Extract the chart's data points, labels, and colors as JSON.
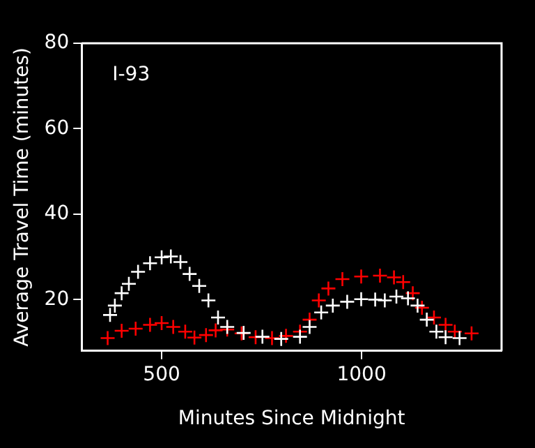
{
  "chart_data": {
    "type": "scatter",
    "xlabel": "Minutes Since Midnight",
    "ylabel": "Average Travel Time (minutes)",
    "annotations": [
      "I-93"
    ],
    "xlim": [
      300,
      1350
    ],
    "xticks": [
      500,
      1000
    ],
    "ylim": [
      8,
      80
    ],
    "yticks": [
      20,
      40,
      60,
      80
    ],
    "grid": false,
    "legend": false,
    "marker": "cross",
    "series": [
      {
        "color": "#ffffff",
        "x": [
          371,
          383,
          400,
          418,
          441,
          471,
          500,
          523,
          547,
          570,
          594,
          617,
          641,
          664,
          705,
          752,
          799,
          846,
          870,
          899,
          928,
          964,
          999,
          1034,
          1058,
          1087,
          1116,
          1140,
          1163,
          1187,
          1210,
          1245
        ],
        "values": [
          16.4,
          18.6,
          21.5,
          23.7,
          26.5,
          28.5,
          29.9,
          30.1,
          28.8,
          26,
          23.2,
          19.8,
          15.8,
          13.6,
          12.2,
          11.3,
          10.8,
          11.3,
          13.6,
          17,
          18.6,
          19.5,
          20.1,
          20,
          19.8,
          20.7,
          20.3,
          18.6,
          15.3,
          12.5,
          11.2,
          11
        ]
      },
      {
        "color": "#ff0000",
        "x": [
          365,
          400,
          435,
          471,
          500,
          529,
          559,
          582,
          611,
          635,
          664,
          700,
          735,
          776,
          811,
          846,
          870,
          893,
          917,
          952,
          999,
          1046,
          1081,
          1104,
          1128,
          1151,
          1181,
          1210,
          1233,
          1275
        ],
        "values": [
          11,
          12.7,
          13.2,
          14.1,
          14.5,
          13.6,
          12.5,
          11.1,
          11.7,
          12.8,
          13,
          12.1,
          11.2,
          11,
          11.5,
          12.5,
          15.3,
          19.8,
          22.6,
          24.8,
          25.4,
          25.6,
          25.2,
          24.1,
          21.5,
          18.1,
          15.8,
          14.1,
          12.5,
          12.1
        ]
      }
    ]
  }
}
